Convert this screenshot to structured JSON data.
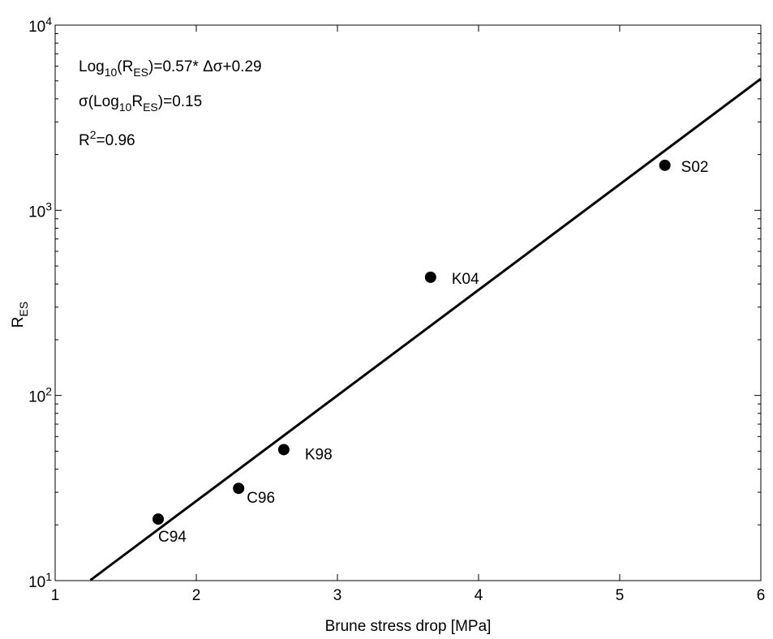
{
  "chart_data": {
    "type": "scatter",
    "xlabel": "Brune stress drop [MPa]",
    "ylabel": [
      "R",
      {
        "sub": "ES"
      }
    ],
    "xlim": [
      1,
      6
    ],
    "xticks": [
      1,
      2,
      3,
      4,
      5,
      6
    ],
    "ylim": [
      10,
      10000
    ],
    "ylog": true,
    "yticks": [
      {
        "value": 10,
        "label": [
          "10",
          {
            "sup": "1"
          }
        ]
      },
      {
        "value": 100,
        "label": [
          "10",
          {
            "sup": "2"
          }
        ]
      },
      {
        "value": 1000,
        "label": [
          "10",
          {
            "sup": "3"
          }
        ]
      },
      {
        "value": 10000,
        "label": [
          "10",
          {
            "sup": "4"
          }
        ]
      }
    ],
    "yminorticks": [
      20,
      30,
      40,
      50,
      60,
      70,
      80,
      90,
      200,
      300,
      400,
      500,
      600,
      700,
      800,
      900,
      2000,
      3000,
      4000,
      5000,
      6000,
      7000,
      8000,
      9000
    ],
    "grid": false,
    "annotations": [
      [
        "Log",
        {
          "sub": "10"
        },
        "(R",
        {
          "sub": "ES"
        },
        ")=0.57* Δσ+0.29"
      ],
      [
        "σ(Log",
        {
          "sub": "10"
        },
        "R",
        {
          "sub": "ES"
        },
        ")=0.15"
      ],
      [
        "R",
        {
          "sup": "2"
        },
        "=0.96"
      ]
    ],
    "series": [
      {
        "mode": "markers",
        "color": "#000000",
        "x": [
          1.73,
          2.3,
          2.62,
          3.66,
          5.32
        ],
        "values": [
          21.5,
          31.5,
          51,
          435,
          1750
        ],
        "labels": [
          "C94",
          "C96",
          "K98",
          "K04",
          "S02"
        ]
      },
      {
        "mode": "line",
        "color": "#000000",
        "x": [
          1.25,
          6
        ],
        "values": [
          10.06,
          5129
        ]
      }
    ]
  }
}
